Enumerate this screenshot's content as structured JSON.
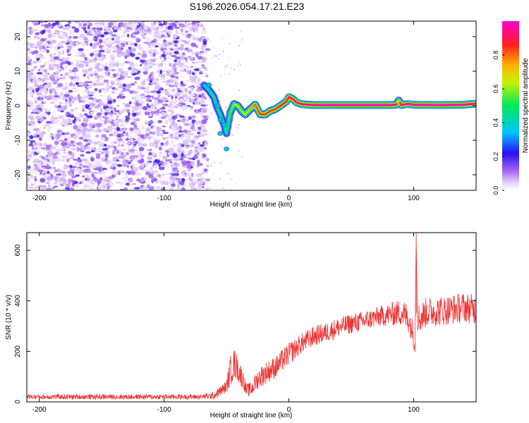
{
  "title": "S196.2026.054.17.21.E23",
  "colors": {
    "snr_line": "#ee3333",
    "frame": "#000000",
    "background": "#ffffff"
  },
  "chart_data": [
    {
      "type": "heatmap",
      "xlabel": "Height of straight line (km)",
      "ylabel": "Frequency (Hz)",
      "xlim": [
        -210,
        150
      ],
      "ylim": [
        -24.5,
        24.5
      ],
      "x_ticks": [
        -200,
        -100,
        0,
        100
      ],
      "y_ticks": [
        -20,
        -10,
        0,
        10,
        20
      ],
      "colorbar": {
        "label": "Normalized spectral amplitude",
        "range": [
          0,
          1
        ],
        "ticks": [
          0.0,
          0.2,
          0.4,
          0.6,
          0.8
        ],
        "colormap": "white-purple-blue-cyan-green-yellow-red"
      },
      "noise_region": {
        "x_range": [
          -210,
          -65
        ],
        "y_range": [
          -24.5,
          24.5
        ],
        "amplitude": "0.0-0.3"
      },
      "signal_ridge": {
        "x": [
          -68,
          -64,
          -60,
          -58,
          -55,
          -52,
          -50,
          -47,
          -44,
          -41,
          -38,
          -35,
          -31,
          -27,
          -23,
          -19,
          -15,
          -11,
          -8,
          -5,
          -2,
          0,
          3,
          6,
          10,
          15,
          20,
          30,
          40,
          60,
          80,
          86,
          88,
          90,
          95,
          100,
          120,
          140,
          150
        ],
        "y": [
          6,
          4.5,
          2.5,
          0,
          -2.5,
          -5.5,
          -8,
          -2,
          0.5,
          0,
          -1.5,
          -2.5,
          -1,
          0.3,
          -2.5,
          -2.5,
          -1.5,
          -1,
          -0.3,
          0.5,
          1.2,
          2.5,
          2,
          1,
          0.5,
          0.3,
          0.2,
          0.2,
          0.2,
          0.2,
          0.2,
          0.3,
          1.5,
          0.2,
          0.5,
          0.3,
          0.2,
          0.3,
          0.6
        ],
        "amp": [
          0.4,
          0.45,
          0.45,
          0.45,
          0.45,
          0.45,
          0.45,
          0.55,
          0.6,
          0.65,
          0.6,
          0.65,
          0.7,
          0.8,
          0.85,
          0.85,
          0.85,
          0.85,
          0.85,
          0.9,
          0.9,
          0.9,
          0.9,
          0.95,
          0.95,
          0.95,
          0.95,
          1.0,
          1.0,
          1.0,
          1.0,
          0.95,
          0.6,
          0.95,
          1.0,
          1.0,
          1.0,
          1.0,
          0.95
        ]
      }
    },
    {
      "type": "line",
      "xlabel": "Height of straight line (km)",
      "ylabel": "SNR (10 * v/v)",
      "xlim": [
        -210,
        150
      ],
      "ylim": [
        0,
        670
      ],
      "x_ticks": [
        -200,
        -100,
        0,
        100
      ],
      "y_ticks": [
        0,
        200,
        400,
        600
      ],
      "series": [
        {
          "color": "#ee3333",
          "x": [
            -210,
            -150,
            -100,
            -70,
            -60,
            -50,
            -46,
            -43,
            -40,
            -36,
            -34,
            -30,
            -25,
            -20,
            -10,
            0,
            10,
            20,
            30,
            40,
            50,
            60,
            70,
            80,
            90,
            96,
            99,
            101,
            102,
            103,
            105,
            110,
            120,
            130,
            140,
            150
          ],
          "y": [
            20,
            20,
            20,
            20,
            25,
            60,
            140,
            150,
            120,
            80,
            45,
            50,
            90,
            110,
            140,
            190,
            230,
            260,
            275,
            295,
            310,
            320,
            335,
            345,
            355,
            330,
            280,
            230,
            650,
            340,
            330,
            355,
            360,
            365,
            375,
            365
          ],
          "noise_amplitude": [
            10,
            10,
            10,
            10,
            15,
            25,
            70,
            60,
            50,
            35,
            25,
            30,
            40,
            45,
            45,
            45,
            40,
            40,
            40,
            40,
            40,
            40,
            40,
            45,
            55,
            60,
            50,
            40,
            0,
            60,
            60,
            60,
            60,
            60,
            60,
            60
          ]
        }
      ]
    }
  ]
}
